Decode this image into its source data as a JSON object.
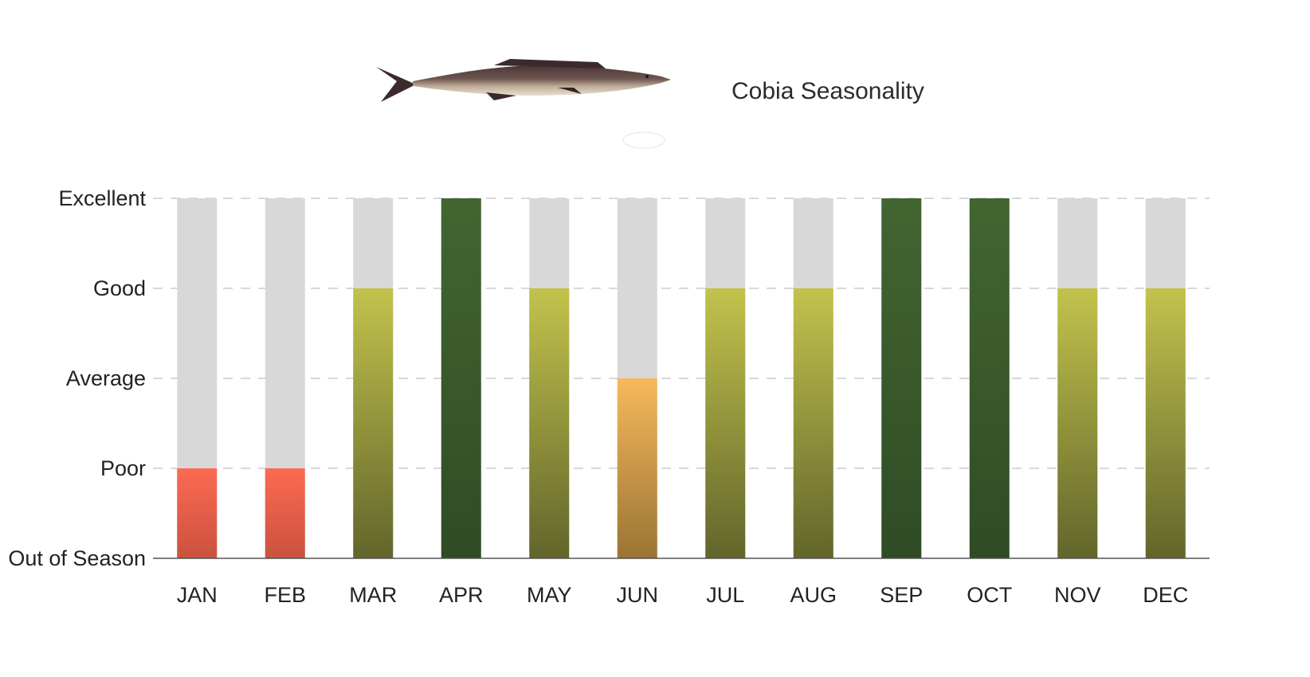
{
  "header": {
    "title": "Cobia Seasonality",
    "image": "cobia-fish-illustration"
  },
  "chart_data": {
    "type": "bar",
    "title": "Cobia Seasonality",
    "xlabel": "",
    "ylabel": "",
    "levels": [
      "Out of Season",
      "Poor",
      "Average",
      "Good",
      "Excellent"
    ],
    "ylim": [
      0,
      4
    ],
    "grid": true,
    "categories": [
      "JAN",
      "FEB",
      "MAR",
      "APR",
      "MAY",
      "JUN",
      "JUL",
      "AUG",
      "SEP",
      "OCT",
      "NOV",
      "DEC"
    ],
    "values": [
      1,
      1,
      3,
      4,
      3,
      2,
      3,
      3,
      4,
      4,
      3,
      3
    ],
    "colors": {
      "background_bar": "#d8d8d8",
      "poor": [
        "#fd6a53",
        "#c9523f"
      ],
      "average": [
        "#f6b95c",
        "#9a7434"
      ],
      "good": [
        "#c2c34c",
        "#62652b"
      ],
      "excellent": [
        "#436531",
        "#2f4c25"
      ],
      "grid": "#cccccc",
      "axis": "#555555",
      "text": "#222222"
    }
  }
}
